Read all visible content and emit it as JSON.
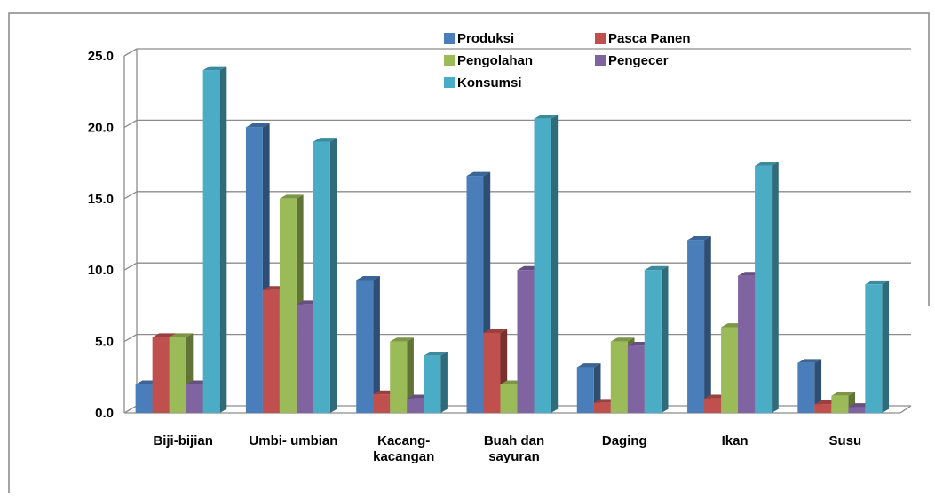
{
  "chart_data": {
    "type": "bar",
    "title": "",
    "xlabel": "",
    "ylabel": "",
    "ylim": [
      0,
      25
    ],
    "yticks": [
      "0.0",
      "5.0",
      "10.0",
      "15.0",
      "20.0",
      "25.0"
    ],
    "grid": true,
    "legend_position": "top-right",
    "categories": [
      "Biji-bijian",
      "Umbi- umbian",
      "Kacang-\nkacangan",
      "Buah dan\nsayuran",
      "Daging",
      "Ikan",
      "Susu"
    ],
    "series": [
      {
        "name": "Produksi",
        "color": "#4a7ebb",
        "values": [
          2.0,
          20.0,
          9.3,
          16.6,
          3.2,
          12.1,
          3.5
        ]
      },
      {
        "name": "Pasca Panen",
        "color": "#c0504d",
        "values": [
          5.3,
          8.6,
          1.3,
          5.6,
          0.7,
          1.0,
          0.6
        ]
      },
      {
        "name": "Pengolahan",
        "color": "#9bbb59",
        "values": [
          5.3,
          15.0,
          5.0,
          2.0,
          5.0,
          6.0,
          1.2
        ]
      },
      {
        "name": "Pengecer",
        "color": "#8064a2",
        "values": [
          2.0,
          7.6,
          1.0,
          10.0,
          4.7,
          9.6,
          0.4
        ]
      },
      {
        "name": "Konsumsi",
        "color": "#4bacc6",
        "values": [
          24.0,
          19.0,
          4.0,
          20.6,
          10.0,
          17.3,
          9.0
        ]
      }
    ]
  }
}
